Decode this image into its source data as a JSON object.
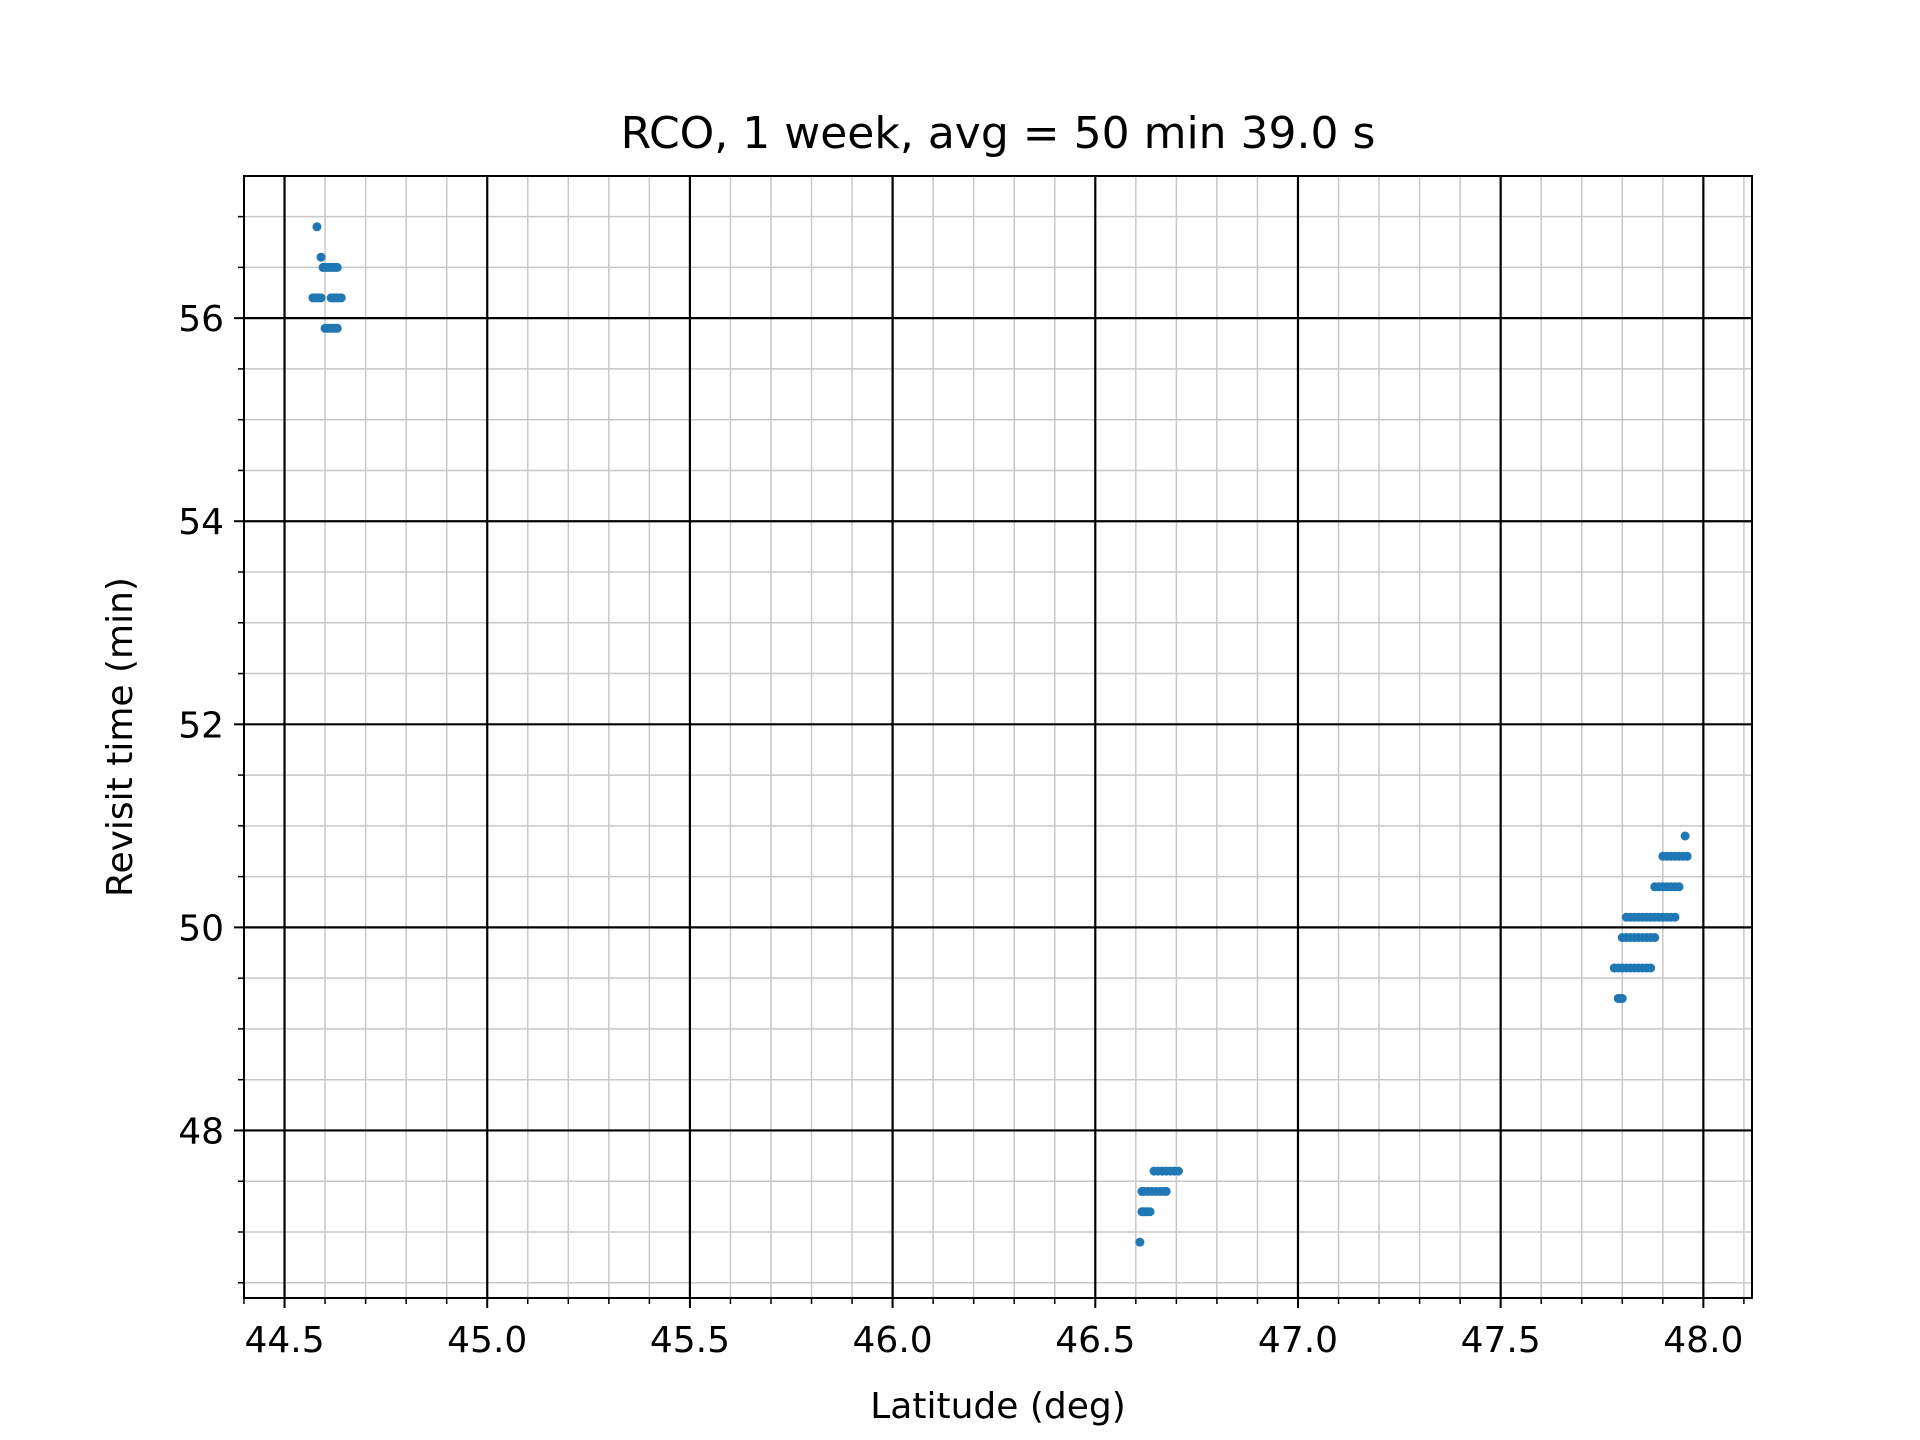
{
  "chart_data": {
    "type": "scatter",
    "title": "RCO, 1 week, avg = 50 min 39.0 s",
    "xlabel": "Latitude (deg)",
    "ylabel": "Revisit time (min)",
    "xlim": [
      44.4,
      48.12
    ],
    "ylim": [
      46.35,
      57.4
    ],
    "xticks": [
      44.5,
      45.0,
      45.5,
      46.0,
      46.5,
      47.0,
      47.5,
      48.0
    ],
    "xtick_labels": [
      "44.5",
      "45.0",
      "45.5",
      "46.0",
      "46.5",
      "47.0",
      "47.5",
      "48.0"
    ],
    "yticks": [
      48,
      50,
      52,
      54,
      56
    ],
    "ytick_labels": [
      "48",
      "50",
      "52",
      "54",
      "56"
    ],
    "x_minor_step": 0.1,
    "y_minor_step": 0.5,
    "grid": "major and minor",
    "marker_color": "#1f77b4",
    "series": [
      {
        "points": [
          [
            44.58,
            56.9
          ],
          [
            44.59,
            56.6
          ],
          [
            44.595,
            56.5
          ],
          [
            44.6,
            56.5
          ],
          [
            44.605,
            56.5
          ],
          [
            44.61,
            56.5
          ],
          [
            44.615,
            56.5
          ],
          [
            44.62,
            56.5
          ],
          [
            44.625,
            56.5
          ],
          [
            44.63,
            56.5
          ],
          [
            44.57,
            56.2
          ],
          [
            44.575,
            56.2
          ],
          [
            44.58,
            56.2
          ],
          [
            44.585,
            56.2
          ],
          [
            44.59,
            56.2
          ],
          [
            44.615,
            56.2
          ],
          [
            44.62,
            56.2
          ],
          [
            44.625,
            56.2
          ],
          [
            44.63,
            56.2
          ],
          [
            44.635,
            56.2
          ],
          [
            44.64,
            56.2
          ],
          [
            44.6,
            55.9
          ],
          [
            44.605,
            55.9
          ],
          [
            44.61,
            55.9
          ],
          [
            44.615,
            55.9
          ],
          [
            44.62,
            55.9
          ],
          [
            44.625,
            55.9
          ],
          [
            44.63,
            55.9
          ],
          [
            46.61,
            46.9
          ],
          [
            46.615,
            47.2
          ],
          [
            46.62,
            47.2
          ],
          [
            46.625,
            47.2
          ],
          [
            46.63,
            47.2
          ],
          [
            46.635,
            47.2
          ],
          [
            46.615,
            47.4
          ],
          [
            46.62,
            47.4
          ],
          [
            46.63,
            47.4
          ],
          [
            46.64,
            47.4
          ],
          [
            46.65,
            47.4
          ],
          [
            46.66,
            47.4
          ],
          [
            46.67,
            47.4
          ],
          [
            46.675,
            47.4
          ],
          [
            46.645,
            47.6
          ],
          [
            46.655,
            47.6
          ],
          [
            46.665,
            47.6
          ],
          [
            46.675,
            47.6
          ],
          [
            46.685,
            47.6
          ],
          [
            46.695,
            47.6
          ],
          [
            46.705,
            47.6
          ],
          [
            47.79,
            49.3
          ],
          [
            47.795,
            49.3
          ],
          [
            47.8,
            49.3
          ],
          [
            47.78,
            49.6
          ],
          [
            47.79,
            49.6
          ],
          [
            47.8,
            49.6
          ],
          [
            47.81,
            49.6
          ],
          [
            47.82,
            49.6
          ],
          [
            47.83,
            49.6
          ],
          [
            47.84,
            49.6
          ],
          [
            47.85,
            49.6
          ],
          [
            47.86,
            49.6
          ],
          [
            47.87,
            49.6
          ],
          [
            47.8,
            49.9
          ],
          [
            47.81,
            49.9
          ],
          [
            47.82,
            49.9
          ],
          [
            47.83,
            49.9
          ],
          [
            47.84,
            49.9
          ],
          [
            47.85,
            49.9
          ],
          [
            47.86,
            49.9
          ],
          [
            47.87,
            49.9
          ],
          [
            47.88,
            49.9
          ],
          [
            47.81,
            50.1
          ],
          [
            47.82,
            50.1
          ],
          [
            47.83,
            50.1
          ],
          [
            47.84,
            50.1
          ],
          [
            47.85,
            50.1
          ],
          [
            47.86,
            50.1
          ],
          [
            47.87,
            50.1
          ],
          [
            47.88,
            50.1
          ],
          [
            47.89,
            50.1
          ],
          [
            47.9,
            50.1
          ],
          [
            47.91,
            50.1
          ],
          [
            47.92,
            50.1
          ],
          [
            47.93,
            50.1
          ],
          [
            47.88,
            50.4
          ],
          [
            47.89,
            50.4
          ],
          [
            47.9,
            50.4
          ],
          [
            47.91,
            50.4
          ],
          [
            47.92,
            50.4
          ],
          [
            47.93,
            50.4
          ],
          [
            47.94,
            50.4
          ],
          [
            47.9,
            50.7
          ],
          [
            47.91,
            50.7
          ],
          [
            47.92,
            50.7
          ],
          [
            47.93,
            50.7
          ],
          [
            47.94,
            50.7
          ],
          [
            47.95,
            50.7
          ],
          [
            47.96,
            50.7
          ],
          [
            47.955,
            50.9
          ]
        ]
      }
    ]
  }
}
